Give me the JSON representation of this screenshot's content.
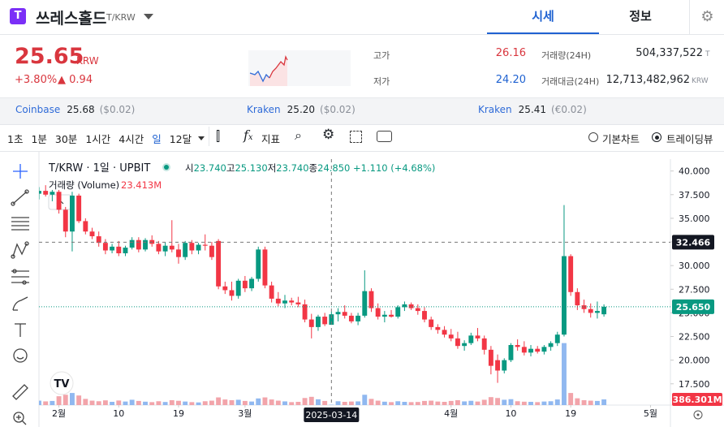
{
  "header": {
    "name": "쓰레스홀드",
    "pair": "T/KRW",
    "tabs": [
      "시세",
      "정보"
    ]
  },
  "price": {
    "value": "25.65",
    "unit": "KRW",
    "change_pct": "+3.80%",
    "change": "0.94"
  },
  "stats": [
    {
      "label": "고가",
      "value": "26.16"
    },
    {
      "label": "거래량(24H)",
      "value": "504,337,522",
      "unit": "T"
    },
    {
      "label": "저가",
      "value": "24.20"
    },
    {
      "label": "거래대금(24H)",
      "value": "12,713,482,962",
      "unit": "KRW"
    }
  ],
  "exchanges": [
    {
      "name": "Coinbase",
      "price": "25.68",
      "diff": "($0.02)"
    },
    {
      "name": "Kraken",
      "price": "25.20",
      "diff": "($0.02)"
    },
    {
      "name": "Kraken",
      "price": "25.41",
      "diff": "(€0.02)"
    }
  ],
  "toolbar": {
    "intervals": [
      "1초",
      "1분",
      "30분",
      "1시간",
      "4시간",
      "일",
      "12달"
    ],
    "indicator": "지표",
    "chart_modes": [
      "기본차트",
      "트레이딩뷰"
    ]
  },
  "chart_data": {
    "type": "candlestick",
    "title": "T/KRW · 1일 · UPBIT",
    "ohlc_header": [
      {
        "label": "시",
        "value": "23.740"
      },
      {
        "label": "고",
        "value": "25.130"
      },
      {
        "label": "저",
        "value": "23.740"
      },
      {
        "label": "종",
        "value": "24.850"
      }
    ],
    "change_header": "+1.110 (+4.68%)",
    "volume_title": "거래량 (Volume)",
    "volume_header": "23.413M",
    "up_color": "#089981",
    "down_color": "#f23645",
    "volume_up_color": "#90b8f0",
    "volume_down_color": "#f2a4aa",
    "grid": false,
    "xlim": [
      0,
      95
    ],
    "xticks": [
      {
        "value": 3,
        "label": "2월"
      },
      {
        "value": 12,
        "label": "10"
      },
      {
        "value": 21,
        "label": "19"
      },
      {
        "value": 31,
        "label": "3월"
      },
      {
        "value": 62,
        "label": "4월"
      },
      {
        "value": 71,
        "label": "10"
      },
      {
        "value": 80,
        "label": "19"
      },
      {
        "value": 92,
        "label": "5월"
      }
    ],
    "ylim": [
      15.25,
      41.0
    ],
    "yticks": [
      {
        "value": 40,
        "label": "40.000"
      },
      {
        "value": 37.5,
        "label": "37.500"
      },
      {
        "value": 35,
        "label": "35.000"
      },
      {
        "value": 32.5,
        "label": "32.500"
      },
      {
        "value": 30,
        "label": "30.000"
      },
      {
        "value": 27.5,
        "label": "27.500"
      },
      {
        "value": 25,
        "label": "25.000"
      },
      {
        "value": 22.5,
        "label": "22.500"
      },
      {
        "value": 20,
        "label": "20.000"
      },
      {
        "value": 17.5,
        "label": "17.500"
      }
    ],
    "volume_lim": [
      0,
      16500
    ],
    "ohlc": [
      [
        37.6,
        38.3,
        37.0,
        37.9
      ],
      [
        37.9,
        38.5,
        37.3,
        37.5
      ],
      [
        37.5,
        38.0,
        36.8,
        37.8
      ],
      [
        37.8,
        38.0,
        35.5,
        35.9
      ],
      [
        35.9,
        36.2,
        33.0,
        33.6
      ],
      [
        33.6,
        37.8,
        31.5,
        37.4
      ],
      [
        37.4,
        37.6,
        34.5,
        34.7
      ],
      [
        34.7,
        35.0,
        33.3,
        33.6
      ],
      [
        33.6,
        34.0,
        32.8,
        33.1
      ],
      [
        33.1,
        33.6,
        32.0,
        32.4
      ],
      [
        32.4,
        32.8,
        31.2,
        31.6
      ],
      [
        31.6,
        32.3,
        31.3,
        32.0
      ],
      [
        32.0,
        32.6,
        31.0,
        31.3
      ],
      [
        31.3,
        32.1,
        31.0,
        31.9
      ],
      [
        31.9,
        33.0,
        31.7,
        32.7
      ],
      [
        32.7,
        33.0,
        31.4,
        31.7
      ],
      [
        31.7,
        32.9,
        31.5,
        32.7
      ],
      [
        32.7,
        33.2,
        32.0,
        32.3
      ],
      [
        32.3,
        32.6,
        31.2,
        31.5
      ],
      [
        31.5,
        32.5,
        31.0,
        32.1
      ],
      [
        32.1,
        34.8,
        31.4,
        31.7
      ],
      [
        31.7,
        32.3,
        30.2,
        30.9
      ],
      [
        30.9,
        32.6,
        30.6,
        32.4
      ],
      [
        32.4,
        32.7,
        31.2,
        31.6
      ],
      [
        31.6,
        32.4,
        31.2,
        32.2
      ],
      [
        32.2,
        33.3,
        31.6,
        32.1
      ],
      [
        32.1,
        32.5,
        30.6,
        30.9
      ],
      [
        32.6,
        32.8,
        27.5,
        27.8
      ],
      [
        27.8,
        28.3,
        27.0,
        27.4
      ],
      [
        27.4,
        28.3,
        26.3,
        26.8
      ],
      [
        26.8,
        28.6,
        26.5,
        28.4
      ],
      [
        28.4,
        28.9,
        27.2,
        27.6
      ],
      [
        27.6,
        28.8,
        27.3,
        28.6
      ],
      [
        28.6,
        32.0,
        28.3,
        31.7
      ],
      [
        31.7,
        32.0,
        27.6,
        27.9
      ],
      [
        27.9,
        28.3,
        26.1,
        26.5
      ],
      [
        26.5,
        27.2,
        25.7,
        26.0
      ],
      [
        26.0,
        26.9,
        25.5,
        26.3
      ],
      [
        26.3,
        26.6,
        25.8,
        26.1
      ],
      [
        26.1,
        26.7,
        25.6,
        25.9
      ],
      [
        25.9,
        26.4,
        24.0,
        24.3
      ],
      [
        24.3,
        24.9,
        22.3,
        23.5
      ],
      [
        23.5,
        24.8,
        23.1,
        24.6
      ],
      [
        24.6,
        25.0,
        23.6,
        23.8
      ],
      [
        23.74,
        25.13,
        23.74,
        24.85
      ],
      [
        24.85,
        25.5,
        24.1,
        25.1
      ],
      [
        25.1,
        25.8,
        24.4,
        24.7
      ],
      [
        24.7,
        25.0,
        23.9,
        24.1
      ],
      [
        24.1,
        25.0,
        23.7,
        24.7
      ],
      [
        24.7,
        29.5,
        24.5,
        27.3
      ],
      [
        27.3,
        27.6,
        25.1,
        25.5
      ],
      [
        25.5,
        26.0,
        24.3,
        24.6
      ],
      [
        24.6,
        25.2,
        24.0,
        24.8
      ],
      [
        24.8,
        25.3,
        24.5,
        24.6
      ],
      [
        24.6,
        25.8,
        24.4,
        25.6
      ],
      [
        25.6,
        26.2,
        25.2,
        25.9
      ],
      [
        25.9,
        26.1,
        25.3,
        25.5
      ],
      [
        25.5,
        25.9,
        24.8,
        25.2
      ],
      [
        25.2,
        25.6,
        24.0,
        24.3
      ],
      [
        24.3,
        24.6,
        23.2,
        23.5
      ],
      [
        23.5,
        23.8,
        22.8,
        23.2
      ],
      [
        23.2,
        23.6,
        22.4,
        22.7
      ],
      [
        22.7,
        23.3,
        22.0,
        22.3
      ],
      [
        22.3,
        23.0,
        21.2,
        21.5
      ],
      [
        21.5,
        22.1,
        21.0,
        21.8
      ],
      [
        21.8,
        22.9,
        21.6,
        22.6
      ],
      [
        22.6,
        23.4,
        22.0,
        22.3
      ],
      [
        22.3,
        22.6,
        20.6,
        21.1
      ],
      [
        21.1,
        21.5,
        18.5,
        19.4
      ],
      [
        20.0,
        20.6,
        17.6,
        18.9
      ],
      [
        18.9,
        20.2,
        18.6,
        20.0
      ],
      [
        20.0,
        21.8,
        19.8,
        21.6
      ],
      [
        21.6,
        22.2,
        21.0,
        21.4
      ],
      [
        21.4,
        22.0,
        20.5,
        20.8
      ],
      [
        20.8,
        21.6,
        20.4,
        21.2
      ],
      [
        21.2,
        21.5,
        20.7,
        20.9
      ],
      [
        20.9,
        21.6,
        20.6,
        21.4
      ],
      [
        21.4,
        22.0,
        21.0,
        21.8
      ],
      [
        21.8,
        23.0,
        21.5,
        22.7
      ],
      [
        22.7,
        36.4,
        22.5,
        31.0
      ],
      [
        31.0,
        31.2,
        26.8,
        27.2
      ],
      [
        27.2,
        27.6,
        25.3,
        25.8
      ],
      [
        25.8,
        26.4,
        25.0,
        25.4
      ],
      [
        25.4,
        26.0,
        24.5,
        25.0
      ],
      [
        25.0,
        26.2,
        24.4,
        25.2
      ],
      [
        24.85,
        25.9,
        24.6,
        25.65
      ]
    ],
    "volumes": [
      300,
      250,
      280,
      600,
      700,
      820,
      650,
      420,
      300,
      260,
      320,
      220,
      310,
      240,
      360,
      280,
      230,
      200,
      260,
      210,
      330,
      290,
      240,
      200,
      180,
      260,
      300,
      520,
      380,
      330,
      360,
      280,
      240,
      450,
      520,
      380,
      300,
      250,
      200,
      220,
      480,
      560,
      390,
      280,
      23.413,
      260,
      220,
      240,
      250,
      700,
      420,
      300,
      230,
      200,
      260,
      220,
      200,
      210,
      280,
      300,
      240,
      220,
      280,
      330,
      250,
      290,
      240,
      360,
      540,
      480,
      360,
      400,
      260,
      230,
      220,
      200,
      240,
      260,
      380,
      4200,
      820,
      460,
      330,
      300,
      280,
      386.301
    ],
    "last_price": {
      "value": 25.65,
      "label": "25.650"
    },
    "last_volume": {
      "value": 386.301,
      "label": "386.301M"
    },
    "crosshair": {
      "x": 44,
      "y": {
        "value": 32.466,
        "label": "32.466"
      },
      "date": "2025-03-14"
    }
  }
}
